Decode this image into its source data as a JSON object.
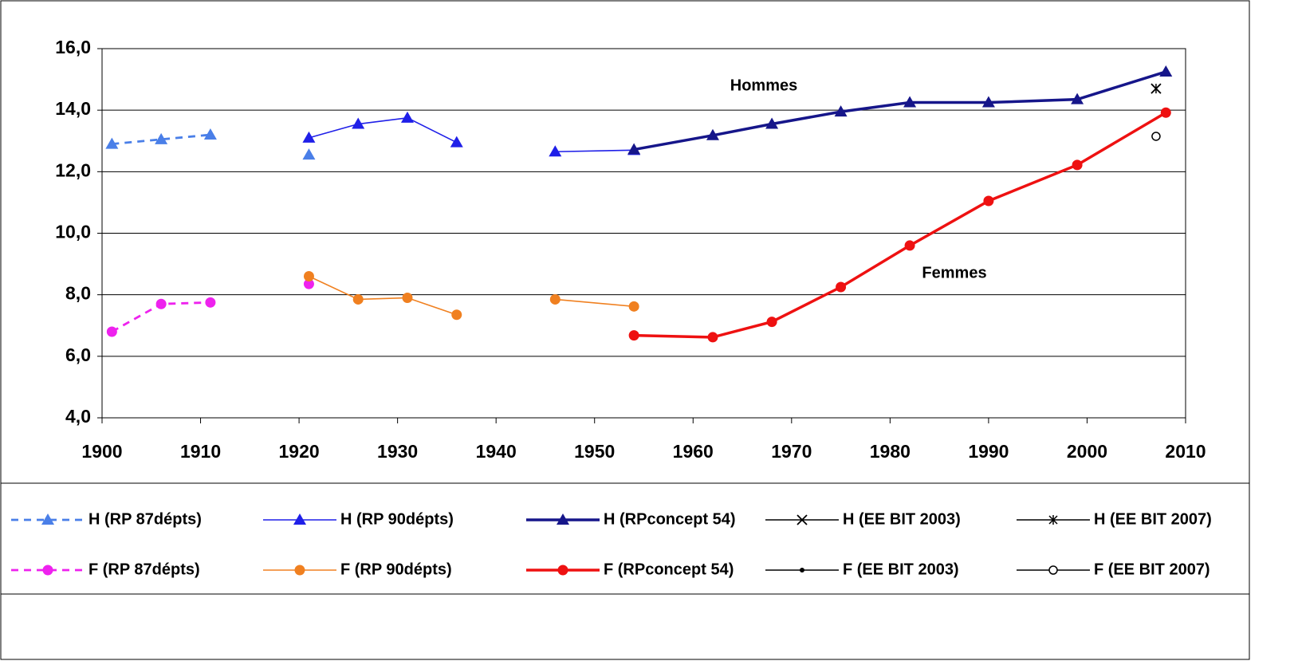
{
  "chart_data": {
    "type": "line",
    "annotations": [
      "Hommes",
      "Femmes"
    ],
    "xlim": [
      1900,
      2010
    ],
    "xticks": [
      1900,
      1910,
      1920,
      1930,
      1940,
      1950,
      1960,
      1970,
      1980,
      1990,
      2000,
      2010
    ],
    "ylim": [
      4,
      16
    ],
    "yticks": [
      {
        "value": 4,
        "label": "4,0"
      },
      {
        "value": 6,
        "label": "6,0"
      },
      {
        "value": 8,
        "label": "8,0"
      },
      {
        "value": 10,
        "label": "10,0"
      },
      {
        "value": 12,
        "label": "12,0"
      },
      {
        "value": 14,
        "label": "14,0"
      },
      {
        "value": 16,
        "label": "16,0"
      }
    ],
    "grid": true,
    "legend": "bottom",
    "series": [
      {
        "name": "H (RP 87dépts)",
        "color": "#4a7fe8",
        "dash": true,
        "width": "thin",
        "marker": "triangle",
        "x": [
          1901,
          1906,
          1911,
          null,
          1921
        ],
        "values": [
          12.9,
          13.05,
          13.2,
          null,
          12.55
        ]
      },
      {
        "name": "H (RP 90dépts)",
        "color": "#1f1fe8",
        "dash": false,
        "width": "thin",
        "marker": "triangle",
        "x": [
          1921,
          1926,
          1931,
          1936,
          null,
          1946,
          1954
        ],
        "values": [
          13.1,
          13.55,
          13.75,
          12.95,
          null,
          12.65,
          12.7
        ]
      },
      {
        "name": "H (RPconcept 54)",
        "color": "#16168a",
        "dash": false,
        "width": "thick",
        "marker": "triangle",
        "x": [
          1954,
          1962,
          1968,
          1975,
          1982,
          1990,
          1999,
          2008
        ],
        "values": [
          12.72,
          13.18,
          13.55,
          13.95,
          14.25,
          14.25,
          14.35,
          15.25
        ]
      },
      {
        "name": "H (EE BIT 2003)",
        "color": "#000000",
        "dash": false,
        "width": "thin",
        "marker": "cross",
        "x": [
          2007
        ],
        "values": [
          14.7
        ]
      },
      {
        "name": "H (EE BIT 2007)",
        "color": "#000000",
        "dash": false,
        "width": "thin",
        "marker": "star",
        "x": [
          2007
        ],
        "values": [
          14.7
        ]
      },
      {
        "name": "F (RP 87dépts)",
        "color": "#ee22ee",
        "dash": true,
        "width": "thin",
        "marker": "circle",
        "x": [
          1901,
          1906,
          1911,
          null,
          1921
        ],
        "values": [
          6.8,
          7.7,
          7.75,
          null,
          8.35
        ]
      },
      {
        "name": "F (RP 90dépts)",
        "color": "#f08020",
        "dash": false,
        "width": "thin",
        "marker": "circle",
        "x": [
          1921,
          1926,
          1931,
          1936,
          null,
          1946,
          1954
        ],
        "values": [
          8.6,
          7.85,
          7.9,
          7.35,
          null,
          7.85,
          7.62
        ]
      },
      {
        "name": "F (RPconcept 54)",
        "color": "#ee1111",
        "dash": false,
        "width": "thick",
        "marker": "circle",
        "x": [
          1954,
          1962,
          1968,
          1975,
          1982,
          1990,
          1999,
          2008
        ],
        "values": [
          6.68,
          6.62,
          7.12,
          8.25,
          9.6,
          11.05,
          12.22,
          13.92
        ]
      },
      {
        "name": "F (EE BIT 2003)",
        "color": "#000000",
        "dash": false,
        "width": "thin",
        "marker": "dot",
        "x": [
          2007
        ],
        "values": [
          13.15
        ]
      },
      {
        "name": "F (EE BIT 2007)",
        "color": "#000000",
        "dash": false,
        "width": "thin",
        "marker": "open",
        "x": [
          2007
        ],
        "values": [
          13.15
        ]
      }
    ]
  }
}
